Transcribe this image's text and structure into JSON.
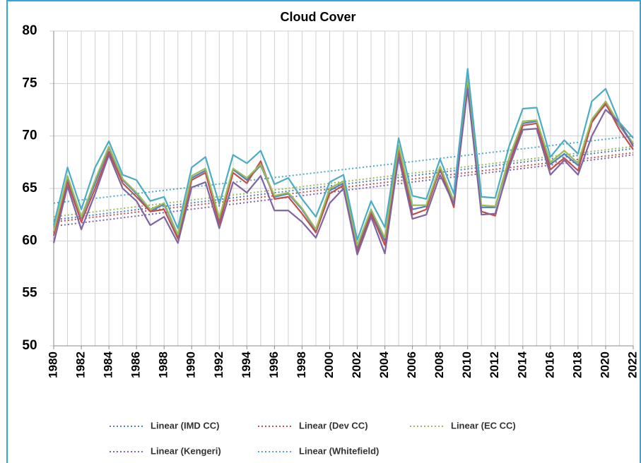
{
  "chart_data": {
    "type": "line",
    "title": "Cloud Cover",
    "x": [
      1980,
      1981,
      1982,
      1983,
      1984,
      1985,
      1986,
      1987,
      1988,
      1989,
      1990,
      1991,
      1992,
      1993,
      1994,
      1995,
      1996,
      1997,
      1998,
      1999,
      2000,
      2001,
      2002,
      2003,
      2004,
      2005,
      2006,
      2007,
      2008,
      2009,
      2010,
      2011,
      2012,
      2013,
      2014,
      2015,
      2016,
      2017,
      2018,
      2019,
      2020,
      2021,
      2022
    ],
    "xlim": [
      1980,
      2022
    ],
    "xticks": [
      1980,
      1982,
      1984,
      1986,
      1988,
      1990,
      1992,
      1994,
      1996,
      1998,
      2000,
      2002,
      2004,
      2006,
      2008,
      2010,
      2012,
      2014,
      2016,
      2018,
      2020,
      2022
    ],
    "ylim": [
      50,
      80
    ],
    "yticks": [
      50,
      55,
      60,
      65,
      70,
      75,
      80
    ],
    "grid": true,
    "series": [
      {
        "color": "#4f81bd",
        "values": [
          60.8,
          66.0,
          62.2,
          65.5,
          68.9,
          65.8,
          64.5,
          62.8,
          63.5,
          60.5,
          66.0,
          66.7,
          62.0,
          66.8,
          65.8,
          67.2,
          64.2,
          64.5,
          63.0,
          61.0,
          64.8,
          65.5,
          59.3,
          62.8,
          60.0,
          69.0,
          63.0,
          63.3,
          66.8,
          63.7,
          75.4,
          63.2,
          63.2,
          67.8,
          71.2,
          71.4,
          67.3,
          68.3,
          67.2,
          71.5,
          73.0,
          71.0,
          69.2
        ]
      },
      {
        "color": "#c0504d",
        "values": [
          60.5,
          65.6,
          61.8,
          65.0,
          68.5,
          65.5,
          64.2,
          62.8,
          63.0,
          60.2,
          65.8,
          66.5,
          61.6,
          66.5,
          65.5,
          67.6,
          64.0,
          64.2,
          62.6,
          60.8,
          64.5,
          65.3,
          59.0,
          62.6,
          59.6,
          68.6,
          62.5,
          63.0,
          66.9,
          63.2,
          75.0,
          62.8,
          62.4,
          67.3,
          71.0,
          71.2,
          66.8,
          67.9,
          66.7,
          71.3,
          73.1,
          70.6,
          68.7
        ]
      },
      {
        "color": "#9bbb59",
        "values": [
          60.9,
          66.2,
          62.3,
          65.8,
          69.0,
          65.9,
          64.6,
          63.0,
          63.6,
          60.6,
          66.2,
          66.9,
          62.2,
          66.9,
          66.0,
          67.3,
          64.3,
          64.6,
          63.1,
          61.1,
          65.0,
          65.7,
          59.6,
          63.0,
          60.3,
          69.1,
          63.4,
          63.4,
          67.1,
          63.8,
          75.6,
          63.4,
          63.3,
          67.9,
          71.4,
          71.5,
          67.5,
          68.6,
          67.4,
          71.6,
          73.3,
          71.1,
          69.3
        ]
      },
      {
        "color": "#8064a2",
        "values": [
          59.8,
          65.2,
          61.1,
          64.5,
          68.2,
          65.0,
          63.8,
          61.5,
          62.3,
          59.8,
          65.1,
          65.6,
          61.2,
          65.6,
          64.6,
          66.2,
          62.9,
          62.9,
          61.8,
          60.3,
          63.6,
          65.0,
          58.7,
          62.3,
          58.8,
          68.0,
          62.1,
          62.5,
          66.3,
          63.5,
          74.5,
          62.5,
          62.6,
          67.0,
          70.6,
          70.7,
          66.3,
          67.7,
          66.3,
          70.0,
          72.5,
          71.3,
          69.0
        ]
      },
      {
        "color": "#4bacc6",
        "values": [
          61.5,
          67.0,
          63.0,
          67.0,
          69.5,
          66.3,
          65.8,
          63.8,
          64.2,
          61.2,
          67.0,
          68.0,
          63.5,
          68.2,
          67.4,
          68.6,
          65.4,
          66.0,
          64.0,
          62.3,
          65.6,
          66.3,
          60.1,
          63.8,
          61.3,
          69.8,
          64.3,
          64.0,
          67.8,
          64.5,
          76.4,
          64.2,
          64.1,
          69.0,
          72.6,
          72.7,
          68.0,
          69.6,
          68.3,
          73.3,
          74.5,
          71.3,
          69.8
        ]
      }
    ],
    "trendlines": [
      {
        "name": "Linear (IMD CC)",
        "color": "#4f81bd",
        "x": [
          1980,
          2022
        ],
        "values": [
          62.0,
          68.8
        ]
      },
      {
        "name": "Linear (Dev CC)",
        "color": "#c0504d",
        "x": [
          1980,
          2022
        ],
        "values": [
          61.8,
          68.4
        ]
      },
      {
        "name": "Linear (EC CC)",
        "color": "#9bbb59",
        "x": [
          1980,
          2022
        ],
        "values": [
          62.3,
          69.0
        ]
      },
      {
        "name": "Linear (Kengeri)",
        "color": "#8064a2",
        "x": [
          1980,
          2022
        ],
        "values": [
          61.4,
          68.2
        ]
      },
      {
        "name": "Linear (Whitefield)",
        "color": "#4bacc6",
        "x": [
          1980,
          2022
        ],
        "values": [
          63.6,
          70.0
        ]
      }
    ]
  }
}
